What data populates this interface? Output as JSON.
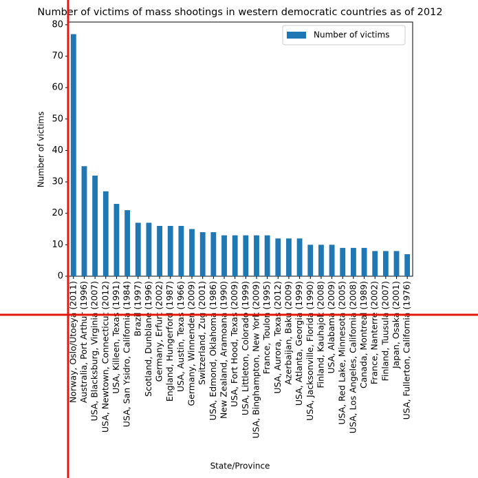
{
  "chart_data": {
    "type": "bar",
    "title": "Number of victims of mass shootings in western democratic countries as of 2012",
    "x_label": "State/Province",
    "y_label": "Number of victims",
    "categories": [
      "Norway, Oslo/Utoeya (2011)",
      "Australia, Port Arthur (1996)",
      "USA, Blacksburg, Virginia (2007)",
      "USA, Newtown, Connecticut (2012)",
      "USA, Killeen, Texas (1991)",
      "USA, San Ysidro, California (1984)",
      "Brazil (1997)",
      "Scotland, Dunblane (1996)",
      "Germany, Erfurt (2002)",
      "England, Hungerford (1987)",
      "USA, Austin, Texas (1966)",
      "Germany, Winnenden (2009)",
      "Switzerland, Zug (2001)",
      "USA, Edmond, Oklahoma (1986)",
      "New Zealand, Aramoana (1990)",
      "USA, Fort Hood, Texas (2009)",
      "USA, Littleton, Colorado (1999)",
      "USA, Binghampton, New York (2009)",
      "France, Toulon (1995)",
      "USA, Aurora, Texas (2012)",
      "Azerbaijan, Baku (2009)",
      "USA, Atlanta, Georgia (1999)",
      "USA, Jacksonville, Florida (1990)",
      "Finland, Kauhajok (2008)",
      "USA, Alabama (2009)",
      "USA, Red Lake, Minnesota (2005)",
      "USA, Los Angeles, California (2008)",
      "Canada, Montreal (1989)",
      "France, Nanterre (2002)",
      "Finland, Tuusula (2007)",
      "Japan, Osaka (2001)",
      "USA, Fullerton, California (1976)"
    ],
    "series": [
      {
        "name": "Number of victims",
        "color": "#1f77b4",
        "values": [
          77,
          35,
          32,
          27,
          23,
          21,
          17,
          17,
          16,
          16,
          16,
          15,
          14,
          14,
          13,
          13,
          13,
          13,
          13,
          12,
          12,
          12,
          10,
          10,
          10,
          9,
          9,
          9,
          8,
          8,
          8,
          7
        ]
      }
    ],
    "ylim": [
      0,
      80.85
    ],
    "yticks": [
      0,
      10,
      20,
      30,
      40,
      50,
      60,
      70,
      80
    ],
    "legend": "upper right"
  }
}
